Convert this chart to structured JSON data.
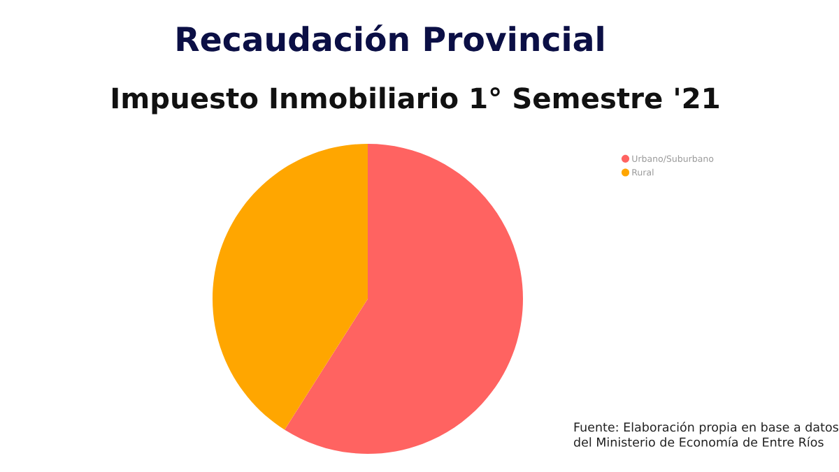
{
  "chart_data": {
    "type": "pie",
    "title": "Recaudación Provincial",
    "subtitle": "Impuesto Inmobiliario 1° Semestre '21",
    "categories": [
      "Urbano/Suburbano",
      "Rural"
    ],
    "values": [
      59,
      41
    ],
    "colors": [
      "#ff6361",
      "#ffa600"
    ],
    "legend": "top right",
    "annotations": [
      "Fuente: Elaboración propia en base a datos\ndel Ministerio de Economía de Entre Ríos"
    ]
  }
}
